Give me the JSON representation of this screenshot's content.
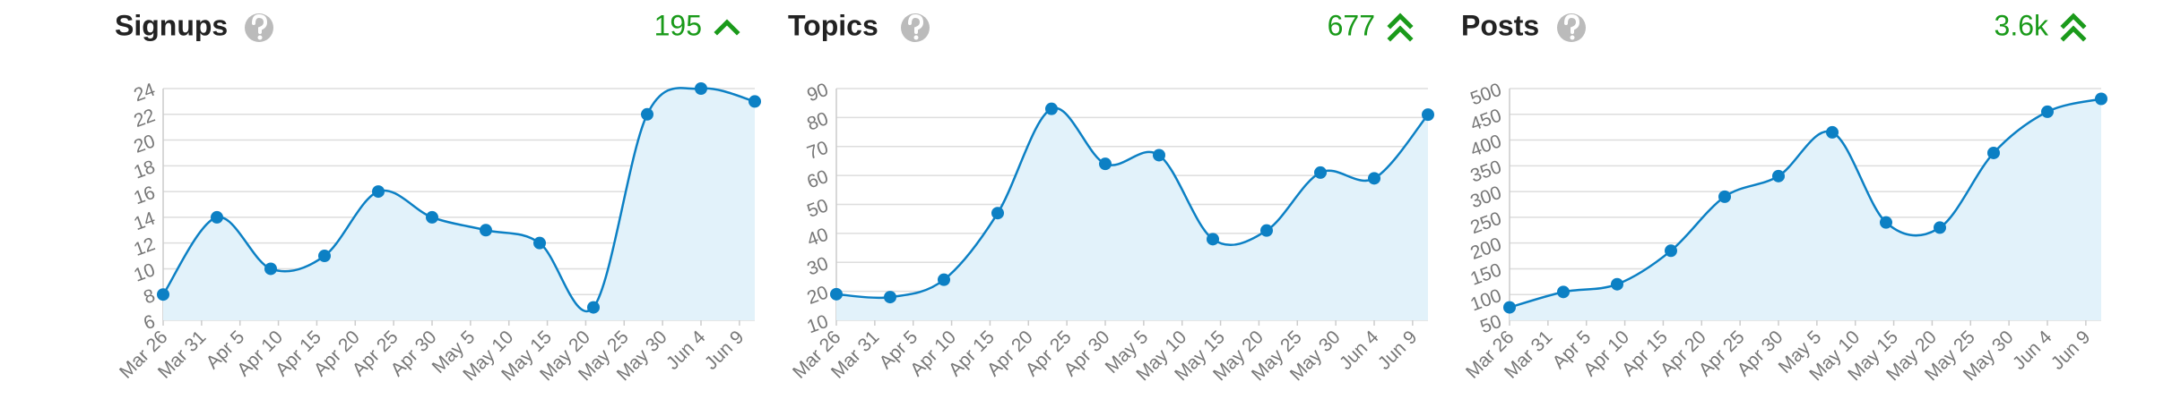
{
  "chart_data": [
    {
      "type": "line",
      "title": "Signups",
      "total": "195",
      "x": [
        "Mar 26",
        "Apr 2",
        "Apr 9",
        "Apr 16",
        "Apr 23",
        "Apr 30",
        "May 7",
        "May 14",
        "May 21",
        "May 28",
        "Jun 4",
        "Jun 11"
      ],
      "series": [
        {
          "color": "#0c80c4",
          "values": [
            8,
            14,
            10,
            11,
            16,
            14,
            13,
            12,
            7,
            22,
            24,
            23
          ]
        }
      ],
      "xlim": [
        "Mar 26",
        "Jun 11"
      ],
      "xticks": [
        "Mar 26",
        "Mar 31",
        "Apr 5",
        "Apr 10",
        "Apr 15",
        "Apr 20",
        "Apr 25",
        "Apr 30",
        "May 5",
        "May 10",
        "May 15",
        "May 20",
        "May 25",
        "May 30",
        "Jun 4",
        "Jun 9"
      ],
      "ylim": [
        6,
        24
      ],
      "yticks": [
        6,
        8,
        10,
        12,
        14,
        16,
        18,
        20,
        22,
        24
      ],
      "grid": true
    },
    {
      "type": "line",
      "title": "Topics",
      "total": "677",
      "x": [
        "Mar 26",
        "Apr 2",
        "Apr 9",
        "Apr 16",
        "Apr 23",
        "Apr 30",
        "May 7",
        "May 14",
        "May 21",
        "May 28",
        "Jun 4",
        "Jun 11"
      ],
      "series": [
        {
          "color": "#0c80c4",
          "values": [
            19,
            18,
            24,
            47,
            83,
            64,
            67,
            38,
            41,
            61,
            59,
            81
          ]
        }
      ],
      "xlim": [
        "Mar 26",
        "Jun 11"
      ],
      "xticks": [
        "Mar 26",
        "Mar 31",
        "Apr 5",
        "Apr 10",
        "Apr 15",
        "Apr 20",
        "Apr 25",
        "Apr 30",
        "May 5",
        "May 10",
        "May 15",
        "May 20",
        "May 25",
        "May 30",
        "Jun 4",
        "Jun 9"
      ],
      "ylim": [
        10,
        90
      ],
      "yticks": [
        10,
        20,
        30,
        40,
        50,
        60,
        70,
        80,
        90
      ],
      "grid": true
    },
    {
      "type": "line",
      "title": "Posts",
      "total": "3.6k",
      "x": [
        "Mar 26",
        "Apr 2",
        "Apr 9",
        "Apr 16",
        "Apr 23",
        "Apr 30",
        "May 7",
        "May 14",
        "May 21",
        "May 28",
        "Jun 4",
        "Jun 11"
      ],
      "series": [
        {
          "color": "#0c80c4",
          "values": [
            75,
            105,
            120,
            185,
            290,
            330,
            415,
            240,
            230,
            375,
            455,
            480
          ]
        }
      ],
      "xlim": [
        "Mar 26",
        "Jun 11"
      ],
      "xticks": [
        "Mar 26",
        "Mar 31",
        "Apr 5",
        "Apr 10",
        "Apr 15",
        "Apr 20",
        "Apr 25",
        "Apr 30",
        "May 5",
        "May 10",
        "May 15",
        "May 20",
        "May 25",
        "May 30",
        "Jun 4",
        "Jun 9"
      ],
      "ylim": [
        50,
        500
      ],
      "yticks": [
        50,
        100,
        150,
        200,
        250,
        300,
        350,
        400,
        450,
        500
      ],
      "grid": true
    }
  ]
}
